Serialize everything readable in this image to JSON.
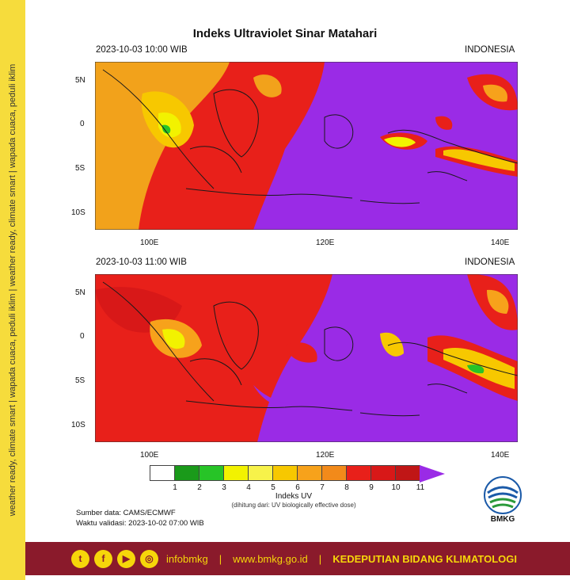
{
  "side_banner": "weather ready, climate smart | wapada cuaca, peduli iklim | weather ready, climate smart | wapada cuaca, peduli iklim",
  "title": "Indeks Ultraviolet Sinar Matahari",
  "panels": [
    {
      "datetime": "2023-10-03  10:00 WIB",
      "region": "INDONESIA"
    },
    {
      "datetime": "2023-10-03  11:00 WIB",
      "region": "INDONESIA"
    }
  ],
  "axes": {
    "lat_labels": [
      "5N",
      "0",
      "5S",
      "10S"
    ],
    "lon_labels": [
      "100E",
      "120E",
      "140E"
    ]
  },
  "legend": {
    "ticks": [
      "1",
      "2",
      "3",
      "4",
      "5",
      "6",
      "7",
      "8",
      "9",
      "10",
      "11"
    ],
    "colors": [
      "#ffffff",
      "#1a9a1a",
      "#27c427",
      "#f2f200",
      "#f7f24a",
      "#f7c800",
      "#f7a21b",
      "#f28a1a",
      "#e8201a",
      "#d81818",
      "#c01616",
      "#9a2be6"
    ],
    "title": "Indeks UV",
    "note": "(dihitung dari: UV biologically effective dose)"
  },
  "source": "Sumber data: CAMS/ECMWF",
  "validity": "Waktu validasi: 2023-10-02 07:00 WIB",
  "logo_text": "BMKG",
  "footer": {
    "social_icons": [
      "twitter-icon",
      "facebook-icon",
      "youtube-icon",
      "instagram-icon"
    ],
    "handle": "infobmkg",
    "website": "www.bmkg.go.id",
    "org": "KEDEPUTIAN BIDANG KLIMATOLOGI"
  }
}
